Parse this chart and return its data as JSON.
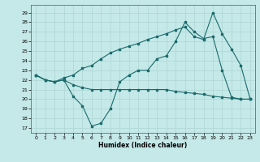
{
  "xlabel": "Humidex (Indice chaleur)",
  "xlim": [
    -0.5,
    23.5
  ],
  "ylim": [
    16.5,
    29.8
  ],
  "yticks": [
    17,
    18,
    19,
    20,
    21,
    22,
    23,
    24,
    25,
    26,
    27,
    28,
    29
  ],
  "xticks": [
    0,
    1,
    2,
    3,
    4,
    5,
    6,
    7,
    8,
    9,
    10,
    11,
    12,
    13,
    14,
    15,
    16,
    17,
    18,
    19,
    20,
    21,
    22,
    23
  ],
  "bg_color": "#c5e8e8",
  "line_color": "#1a6b6b",
  "grid_color": "#aed4d4",
  "line1_x": [
    0,
    1,
    2,
    3,
    4,
    5,
    6,
    7,
    8,
    9,
    10,
    11,
    12,
    13,
    14,
    15,
    16,
    17,
    18,
    19,
    20,
    21,
    22,
    23
  ],
  "line1_y": [
    22.5,
    22.0,
    21.8,
    22.0,
    20.3,
    19.3,
    17.2,
    17.5,
    19.0,
    21.8,
    22.5,
    23.0,
    23.0,
    24.2,
    24.5,
    26.0,
    28.0,
    27.0,
    26.3,
    26.5,
    23.0,
    20.2,
    20.0,
    20.0
  ],
  "line2_x": [
    0,
    1,
    2,
    3,
    4,
    5,
    6,
    7,
    8,
    9,
    10,
    11,
    12,
    13,
    14,
    15,
    16,
    17,
    18,
    19,
    20,
    21,
    22,
    23
  ],
  "line2_y": [
    22.5,
    22.0,
    21.8,
    22.0,
    21.5,
    21.2,
    21.0,
    21.0,
    21.0,
    21.0,
    21.0,
    21.0,
    21.0,
    21.0,
    21.0,
    20.8,
    20.7,
    20.6,
    20.5,
    20.3,
    20.2,
    20.1,
    20.0,
    20.0
  ],
  "line3_x": [
    0,
    1,
    2,
    3,
    4,
    5,
    6,
    7,
    8,
    9,
    10,
    11,
    12,
    13,
    14,
    15,
    16,
    17,
    18,
    19,
    20,
    21,
    22,
    23
  ],
  "line3_y": [
    22.5,
    22.0,
    21.8,
    22.2,
    22.5,
    23.2,
    23.5,
    24.2,
    24.8,
    25.2,
    25.5,
    25.8,
    26.2,
    26.5,
    26.8,
    27.2,
    27.5,
    26.5,
    26.2,
    29.0,
    26.8,
    25.2,
    23.5,
    20.0
  ]
}
